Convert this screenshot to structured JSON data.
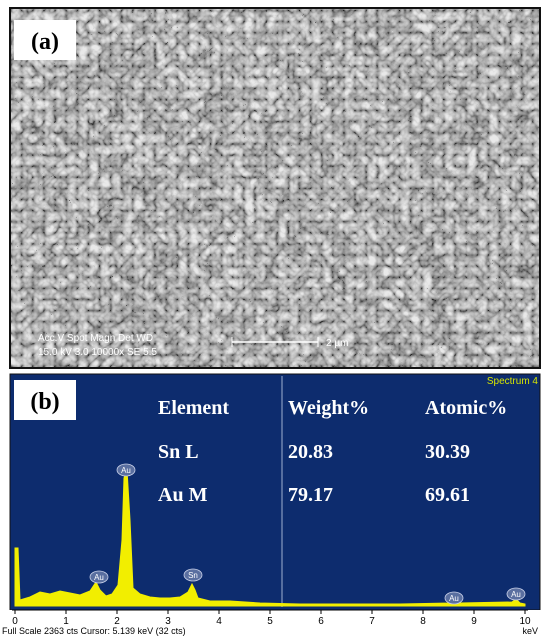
{
  "panel_a": {
    "label": "(a)",
    "info": [
      "Acc.V   Spot Magn     Det  WD",
      "15.0 kV 3.0   10000x   SE   5.5"
    ],
    "scale_bar": "2 µm"
  },
  "panel_b": {
    "label": "(b)",
    "spectrum_name": "Spectrum 4",
    "table": {
      "header": [
        "Element",
        "Weight%",
        "Atomic%"
      ],
      "rows": [
        [
          "Sn L",
          20.83,
          30.39
        ],
        [
          "Au M",
          79.17,
          69.61
        ]
      ]
    },
    "peak_labels": [
      "Au",
      "Au",
      "Sn",
      "Au",
      "Au"
    ],
    "x_ticks": [
      "0",
      "1",
      "2",
      "3",
      "4",
      "5",
      "6",
      "7",
      "8",
      "9",
      "10"
    ],
    "x_unit": "keV",
    "footer": "Full Scale 2363 cts  Cursor: 5.139 keV (32 cts)"
  }
}
